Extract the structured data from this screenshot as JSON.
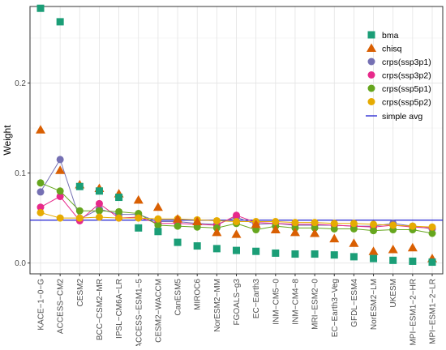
{
  "chart_data": {
    "type": "line",
    "title": "",
    "xlabel": "",
    "ylabel": "Weight",
    "ylim": [
      -0.012,
      0.285
    ],
    "yticks": [
      "0.0",
      "0.1",
      "0.2"
    ],
    "ytick_values": [
      0.0,
      0.1,
      0.2
    ],
    "grid": true,
    "legend_position": "right",
    "categories": [
      "KACE-1-0-G",
      "ACCESS-CM2",
      "CESM2",
      "BCC-CSM2-MR",
      "IPSL-CM6A-LR",
      "ACCESS-ESM1-5",
      "CESM2-WACCM",
      "CanESM5",
      "MIROC6",
      "NorESM2-MM",
      "FGOALS-g3",
      "EC-Earth3",
      "INM-CM5-0",
      "INM-CM4-8",
      "MRI-ESM2-0",
      "EC-Earth3-Veg",
      "GFDL-ESM4",
      "NorESM2-LM",
      "UKESM",
      "MPI-ESM1-2-HR",
      "MPI-ESM1-2-LR"
    ],
    "tick_labels": [
      "KACE−1−0−G",
      "ACCESS−CM2",
      "CESM2",
      "BCC−CSM2−MR",
      "IPSL−CM6A−LR",
      "ACCESS−ESM1−5",
      "CESM2−WACCM",
      "CanESM5",
      "MIROC6",
      "NorESM2−MM",
      "FGOALS−g3",
      "EC−Earth3",
      "INM−CM5−0",
      "INM−CM4−8",
      "MRI−ESM2−0",
      "EC−Earth3−Veg",
      "GFDL−ESM4",
      "NorESM2−LM",
      "UKESM",
      "MPI−ESM1−2−HR",
      "MPI−ESM1−2−LR"
    ],
    "series": [
      {
        "name": "bma",
        "marker": "square",
        "color": "#1b9e77",
        "line": false,
        "values": [
          0.283,
          0.268,
          0.085,
          0.08,
          0.073,
          0.039,
          0.035,
          0.023,
          0.019,
          0.016,
          0.014,
          0.013,
          0.011,
          0.01,
          0.01,
          0.009,
          0.007,
          0.005,
          0.003,
          0.002,
          0.001
        ]
      },
      {
        "name": "chisq",
        "marker": "triangle",
        "color": "#d95f02",
        "line": false,
        "values": [
          0.148,
          0.103,
          0.087,
          0.083,
          0.077,
          0.07,
          0.062,
          0.049,
          0.046,
          0.034,
          0.032,
          0.043,
          0.037,
          0.034,
          0.033,
          0.027,
          0.022,
          0.013,
          0.015,
          0.017,
          0.005
        ]
      },
      {
        "name": "crps(ssp3p1)",
        "marker": "circle",
        "color": "#7570b3",
        "line": true,
        "values": [
          0.079,
          0.115,
          0.049,
          0.06,
          0.054,
          0.054,
          0.046,
          0.046,
          0.044,
          0.043,
          0.051,
          0.043,
          0.044,
          0.042,
          0.042,
          0.042,
          0.041,
          0.041,
          0.044,
          0.041,
          0.038
        ]
      },
      {
        "name": "crps(ssp3p2)",
        "marker": "circle",
        "color": "#e7298a",
        "line": true,
        "values": [
          0.062,
          0.074,
          0.047,
          0.066,
          0.05,
          0.051,
          0.044,
          0.044,
          0.043,
          0.042,
          0.053,
          0.045,
          0.044,
          0.043,
          0.043,
          0.042,
          0.041,
          0.04,
          0.042,
          0.04,
          0.039
        ]
      },
      {
        "name": "crps(ssp5p1)",
        "marker": "circle",
        "color": "#66a61e",
        "line": true,
        "values": [
          0.089,
          0.08,
          0.058,
          0.058,
          0.057,
          0.055,
          0.042,
          0.041,
          0.04,
          0.039,
          0.044,
          0.037,
          0.041,
          0.039,
          0.039,
          0.038,
          0.038,
          0.036,
          0.037,
          0.037,
          0.033
        ]
      },
      {
        "name": "crps(ssp5p2)",
        "marker": "circle",
        "color": "#e6ab02",
        "line": true,
        "values": [
          0.056,
          0.05,
          0.05,
          0.051,
          0.05,
          0.05,
          0.049,
          0.049,
          0.048,
          0.047,
          0.046,
          0.046,
          0.046,
          0.045,
          0.045,
          0.044,
          0.044,
          0.043,
          0.042,
          0.041,
          0.04
        ]
      }
    ],
    "reference_line": {
      "name": "simple avg",
      "value": 0.0476,
      "color": "#1f1fd1"
    }
  }
}
